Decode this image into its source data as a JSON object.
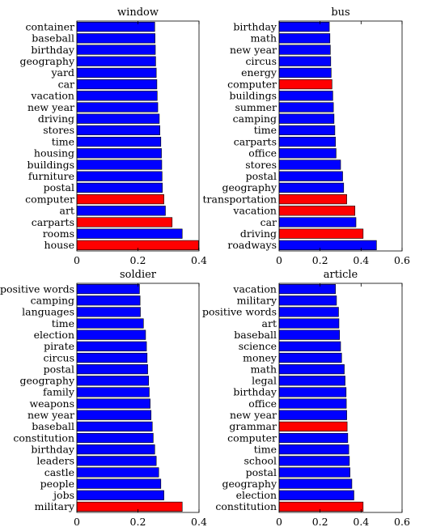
{
  "colors": {
    "blue": "#0000ff",
    "red": "#ff0000",
    "frame": "#000000"
  },
  "chart_data": [
    {
      "type": "bar",
      "orientation": "horizontal",
      "title": "window",
      "xlim": [
        0,
        0.4
      ],
      "xticks": [
        "0",
        "0.2",
        "0.4"
      ],
      "categories": [
        "container",
        "baseball",
        "birthday",
        "geography",
        "yard",
        "car",
        "vacation",
        "new year",
        "driving",
        "stores",
        "time",
        "housing",
        "buildings",
        "furniture",
        "postal",
        "computer",
        "art",
        "carparts",
        "rooms",
        "house"
      ],
      "values": [
        0.255,
        0.256,
        0.257,
        0.258,
        0.26,
        0.262,
        0.263,
        0.265,
        0.27,
        0.272,
        0.275,
        0.277,
        0.278,
        0.279,
        0.28,
        0.285,
        0.29,
        0.312,
        0.345,
        0.398
      ],
      "highlighted": [
        false,
        false,
        false,
        false,
        false,
        false,
        false,
        false,
        false,
        false,
        false,
        false,
        false,
        false,
        false,
        true,
        false,
        true,
        false,
        true
      ]
    },
    {
      "type": "bar",
      "orientation": "horizontal",
      "title": "bus",
      "xlim": [
        0,
        0.6
      ],
      "xticks": [
        "0",
        "0.2",
        "0.4",
        "0.6"
      ],
      "categories": [
        "birthday",
        "math",
        "new year",
        "circus",
        "energy",
        "computer",
        "buildings",
        "summer",
        "camping",
        "time",
        "carparts",
        "office",
        "stores",
        "postal",
        "geography",
        "transportation",
        "vacation",
        "car",
        "driving",
        "roadways"
      ],
      "values": [
        0.245,
        0.248,
        0.25,
        0.252,
        0.254,
        0.258,
        0.262,
        0.265,
        0.268,
        0.272,
        0.275,
        0.278,
        0.3,
        0.31,
        0.315,
        0.33,
        0.37,
        0.375,
        0.41,
        0.475
      ],
      "highlighted": [
        false,
        false,
        false,
        false,
        false,
        true,
        false,
        false,
        false,
        false,
        false,
        false,
        false,
        false,
        false,
        true,
        true,
        false,
        true,
        false
      ]
    },
    {
      "type": "bar",
      "orientation": "horizontal",
      "title": "soldier",
      "xlim": [
        0,
        0.4
      ],
      "xticks": [
        "0",
        "0.2",
        "0.4"
      ],
      "categories": [
        "positive words",
        "camping",
        "languages",
        "time",
        "election",
        "pirate",
        "circus",
        "postal",
        "geography",
        "family",
        "weapons",
        "new year",
        "baseball",
        "constitution",
        "birthday",
        "leaders",
        "castle",
        "people",
        "jobs",
        "military"
      ],
      "values": [
        0.205,
        0.207,
        0.208,
        0.218,
        0.225,
        0.228,
        0.23,
        0.232,
        0.235,
        0.237,
        0.24,
        0.243,
        0.247,
        0.25,
        0.255,
        0.26,
        0.268,
        0.275,
        0.285,
        0.345
      ],
      "highlighted": [
        false,
        false,
        false,
        false,
        false,
        false,
        false,
        false,
        false,
        false,
        false,
        false,
        false,
        false,
        false,
        false,
        false,
        false,
        false,
        true
      ]
    },
    {
      "type": "bar",
      "orientation": "horizontal",
      "title": "article",
      "xlim": [
        0,
        0.6
      ],
      "xticks": [
        "0",
        "0.2",
        "0.4",
        "0.6"
      ],
      "categories": [
        "vacation",
        "military",
        "positive words",
        "art",
        "baseball",
        "science",
        "money",
        "math",
        "legal",
        "birthday",
        "office",
        "new year",
        "grammar",
        "computer",
        "time",
        "school",
        "postal",
        "geography",
        "election",
        "constitution"
      ],
      "values": [
        0.275,
        0.28,
        0.29,
        0.292,
        0.295,
        0.3,
        0.305,
        0.318,
        0.322,
        0.327,
        0.328,
        0.33,
        0.332,
        0.335,
        0.34,
        0.343,
        0.346,
        0.355,
        0.365,
        0.41
      ],
      "highlighted": [
        false,
        false,
        false,
        false,
        false,
        false,
        false,
        false,
        false,
        false,
        false,
        false,
        true,
        false,
        false,
        false,
        false,
        false,
        false,
        true
      ]
    }
  ]
}
